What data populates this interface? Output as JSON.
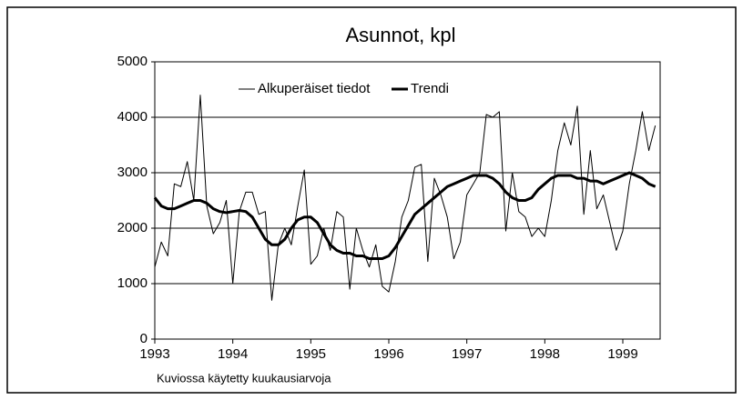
{
  "chart_data": {
    "type": "line",
    "title": "Asunnot, kpl",
    "note": "Kuviossa käytetty kuukausiarvoja",
    "categories": [
      "1993",
      null,
      null,
      null,
      null,
      null,
      null,
      null,
      null,
      null,
      null,
      null,
      "1994",
      null,
      null,
      null,
      null,
      null,
      null,
      null,
      null,
      null,
      null,
      null,
      "1995",
      null,
      null,
      null,
      null,
      null,
      null,
      null,
      null,
      null,
      null,
      null,
      "1996",
      null,
      null,
      null,
      null,
      null,
      null,
      null,
      null,
      null,
      null,
      null,
      "1997",
      null,
      null,
      null,
      null,
      null,
      null,
      null,
      null,
      null,
      null,
      null,
      "1998",
      null,
      null,
      null,
      null,
      null,
      null,
      null,
      null,
      null,
      null,
      null,
      "1999",
      null,
      null,
      null,
      null,
      null
    ],
    "series": [
      {
        "name": "Alkuperäiset tiedot",
        "color": "#000000",
        "width": 1,
        "values": [
          1300,
          1750,
          1500,
          2800,
          2750,
          3200,
          2500,
          4400,
          2400,
          1900,
          2100,
          2500,
          1000,
          2300,
          2650,
          2650,
          2250,
          2300,
          700,
          1700,
          2000,
          1700,
          2400,
          3050,
          1350,
          1500,
          2000,
          1600,
          2300,
          2200,
          900,
          2000,
          1600,
          1300,
          1700,
          950,
          850,
          1400,
          2200,
          2500,
          3100,
          3150,
          1400,
          2900,
          2600,
          2200,
          1450,
          1750,
          2600,
          2800,
          3000,
          4050,
          4000,
          4100,
          1950,
          3000,
          2300,
          2200,
          1850,
          2000,
          1850,
          2500,
          3400,
          3900,
          3500,
          4200,
          2250,
          3400,
          2350,
          2600,
          2100,
          1600,
          1950,
          2800,
          3400,
          4100,
          3400,
          3850
        ]
      },
      {
        "name": "Trendi",
        "color": "#000000",
        "width": 3,
        "values": [
          2550,
          2400,
          2350,
          2350,
          2400,
          2450,
          2500,
          2500,
          2450,
          2350,
          2300,
          2280,
          2300,
          2320,
          2300,
          2200,
          2000,
          1800,
          1700,
          1700,
          1800,
          2000,
          2150,
          2200,
          2200,
          2100,
          1900,
          1700,
          1600,
          1550,
          1550,
          1500,
          1500,
          1450,
          1450,
          1450,
          1500,
          1650,
          1850,
          2050,
          2250,
          2350,
          2450,
          2550,
          2650,
          2750,
          2800,
          2850,
          2900,
          2950,
          2950,
          2950,
          2900,
          2800,
          2650,
          2550,
          2500,
          2500,
          2550,
          2700,
          2800,
          2900,
          2950,
          2950,
          2950,
          2900,
          2900,
          2850,
          2850,
          2800,
          2850,
          2900,
          2950,
          3000,
          2950,
          2900,
          2800,
          2750
        ]
      }
    ],
    "ylim": [
      0,
      5000
    ],
    "yticks": [
      0,
      1000,
      2000,
      3000,
      4000,
      5000
    ],
    "grid": true,
    "legend": "top-left"
  }
}
